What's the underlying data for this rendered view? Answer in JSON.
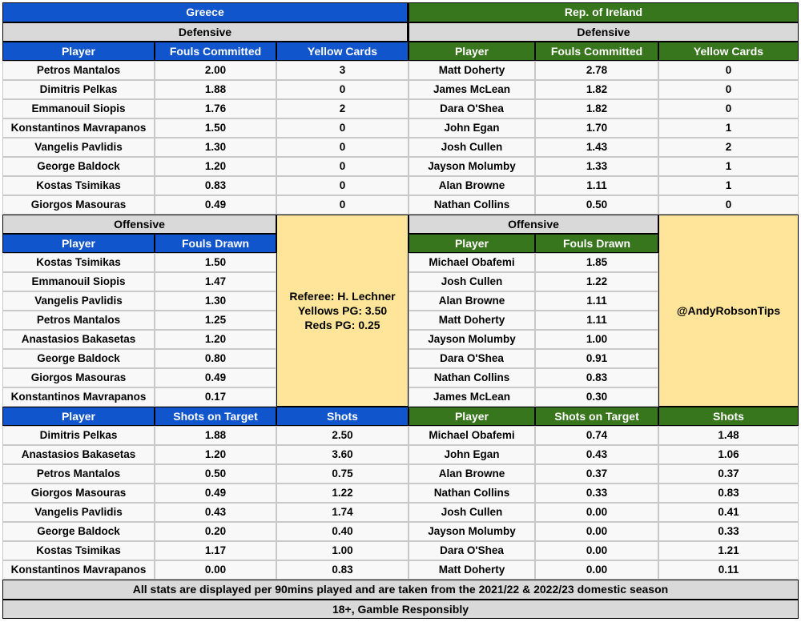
{
  "greece": {
    "title": "Greece",
    "defensive": {
      "section_label": "Defensive",
      "headers": [
        "Player",
        "Fouls Committed",
        "Yellow Cards"
      ],
      "rows": [
        [
          "Petros Mantalos",
          "2.00",
          "3"
        ],
        [
          "Dimitris Pelkas",
          "1.88",
          "0"
        ],
        [
          "Emmanouil Siopis",
          "1.76",
          "2"
        ],
        [
          "Konstantinos Mavrapanos",
          "1.50",
          "0"
        ],
        [
          "Vangelis Pavlidis",
          "1.30",
          "0"
        ],
        [
          "George Baldock",
          "1.20",
          "0"
        ],
        [
          "Kostas Tsimikas",
          "0.83",
          "0"
        ],
        [
          "Giorgos Masouras",
          "0.49",
          "0"
        ]
      ]
    },
    "offensive": {
      "section_label": "Offensive",
      "headers": [
        "Player",
        "Fouls Drawn"
      ],
      "rows": [
        [
          "Kostas Tsimikas",
          "1.50"
        ],
        [
          "Emmanouil Siopis",
          "1.47"
        ],
        [
          "Vangelis Pavlidis",
          "1.30"
        ],
        [
          "Petros Mantalos",
          "1.25"
        ],
        [
          "Anastasios Bakasetas",
          "1.20"
        ],
        [
          "George Baldock",
          "0.80"
        ],
        [
          "Giorgos Masouras",
          "0.49"
        ],
        [
          "Konstantinos Mavrapanos",
          "0.17"
        ]
      ]
    },
    "shots": {
      "headers": [
        "Player",
        "Shots on Target",
        "Shots"
      ],
      "rows": [
        [
          "Dimitris Pelkas",
          "1.88",
          "2.50"
        ],
        [
          "Anastasios Bakasetas",
          "1.20",
          "3.60"
        ],
        [
          "Petros Mantalos",
          "0.50",
          "0.75"
        ],
        [
          "Giorgos Masouras",
          "0.49",
          "1.22"
        ],
        [
          "Vangelis Pavlidis",
          "0.43",
          "1.74"
        ],
        [
          "George Baldock",
          "0.20",
          "0.40"
        ],
        [
          "Kostas Tsimikas",
          "1.17",
          "1.00"
        ],
        [
          "Konstantinos Mavrapanos",
          "0.00",
          "0.83"
        ]
      ]
    }
  },
  "ireland": {
    "title": "Rep. of Ireland",
    "defensive": {
      "section_label": "Defensive",
      "headers": [
        "Player",
        "Fouls Committed",
        "Yellow Cards"
      ],
      "rows": [
        [
          "Matt Doherty",
          "2.78",
          "0"
        ],
        [
          "James McLean",
          "1.82",
          "0"
        ],
        [
          "Dara O'Shea",
          "1.82",
          "0"
        ],
        [
          "John Egan",
          "1.70",
          "1"
        ],
        [
          "Josh Cullen",
          "1.43",
          "2"
        ],
        [
          "Jayson Molumby",
          "1.33",
          "1"
        ],
        [
          "Alan Browne",
          "1.11",
          "1"
        ],
        [
          "Nathan Collins",
          "0.50",
          "0"
        ]
      ]
    },
    "offensive": {
      "section_label": "Offensive",
      "headers": [
        "Player",
        "Fouls Drawn"
      ],
      "rows": [
        [
          "Michael Obafemi",
          "1.85"
        ],
        [
          "Josh Cullen",
          "1.22"
        ],
        [
          "Alan Browne",
          "1.11"
        ],
        [
          "Matt Doherty",
          "1.11"
        ],
        [
          "Jayson Molumby",
          "1.00"
        ],
        [
          "Dara O'Shea",
          "0.91"
        ],
        [
          "Nathan Collins",
          "0.83"
        ],
        [
          "James McLean",
          "0.30"
        ]
      ]
    },
    "shots": {
      "headers": [
        "Player",
        "Shots on Target",
        "Shots"
      ],
      "rows": [
        [
          "Michael Obafemi",
          "0.74",
          "1.48"
        ],
        [
          "John Egan",
          "0.43",
          "1.06"
        ],
        [
          "Alan Browne",
          "0.37",
          "0.37"
        ],
        [
          "Nathan Collins",
          "0.33",
          "0.83"
        ],
        [
          "Josh Cullen",
          "0.00",
          "0.41"
        ],
        [
          "Jayson Molumby",
          "0.00",
          "0.33"
        ],
        [
          "Dara O'Shea",
          "0.00",
          "1.21"
        ],
        [
          "Matt Doherty",
          "0.00",
          "0.11"
        ]
      ]
    }
  },
  "referee_box": [
    "Referee: H. Lechner",
    "Yellows PG: 3.50",
    "Reds PG: 0.25"
  ],
  "handle": "@AndyRobsonTips",
  "footer_note": "All stats are displayed per 90mins played and are taken from the 2021/22 & 2022/23 domestic season",
  "disclaimer": "18+, Gamble Responsibly",
  "colors": {
    "greece": "#1155cc",
    "ireland": "#38761d",
    "section": "#d9d9d9",
    "info": "#ffe599"
  }
}
